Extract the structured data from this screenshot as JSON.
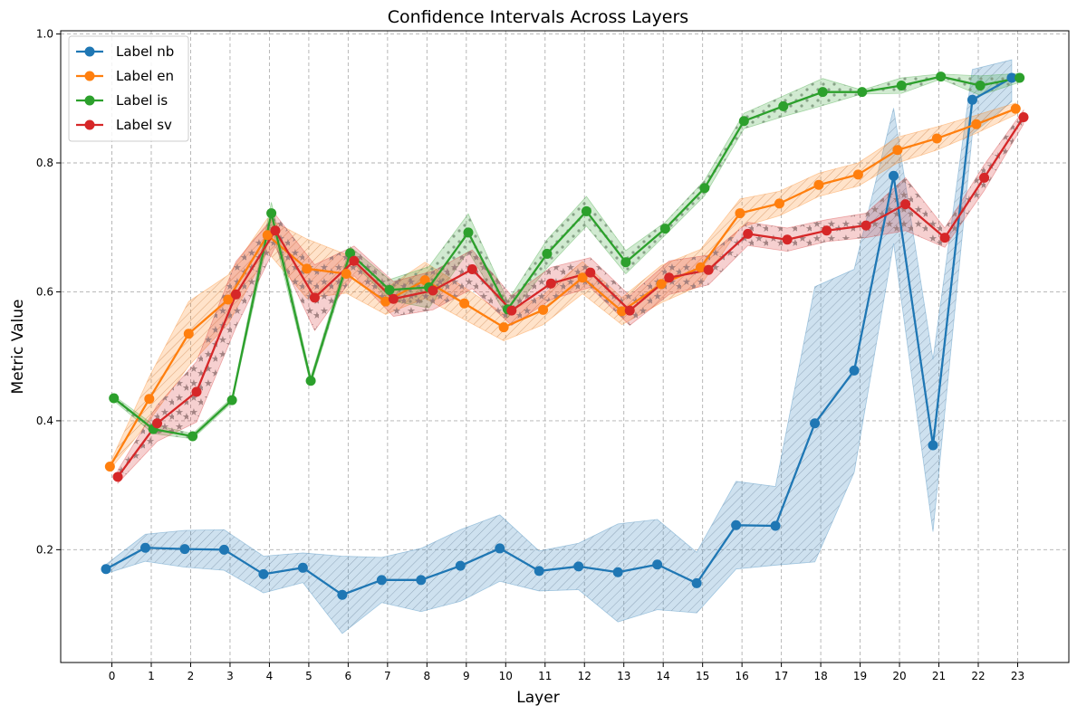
{
  "chart_data": {
    "type": "line",
    "title": "Confidence Intervals Across Layers",
    "xlabel": "Layer",
    "ylabel": "Metric Value",
    "x": [
      0,
      1,
      2,
      3,
      4,
      5,
      6,
      7,
      8,
      9,
      10,
      11,
      12,
      13,
      14,
      15,
      16,
      17,
      18,
      19,
      20,
      21,
      22,
      23
    ],
    "xticks": [
      "0",
      "1",
      "2",
      "3",
      "4",
      "5",
      "6",
      "7",
      "8",
      "9",
      "10",
      "11",
      "12",
      "13",
      "14",
      "15",
      "16",
      "17",
      "18",
      "19",
      "20",
      "21",
      "22",
      "23"
    ],
    "yticks": [
      0.2,
      0.4,
      0.6,
      0.8,
      1.0
    ],
    "ytick_labels": [
      "0.2",
      "0.4",
      "0.6",
      "0.8",
      "1.0"
    ],
    "xlim": [
      -1.3,
      24.3
    ],
    "ylim": [
      0.025,
      1.005
    ],
    "grid": true,
    "legend_position": "top-left",
    "series": [
      {
        "name": "Label nb",
        "color": "#1f77b4",
        "x_offset": -0.15,
        "hatch": "diagonal",
        "values": [
          0.17,
          0.203,
          0.201,
          0.2,
          0.162,
          0.172,
          0.13,
          0.153,
          0.153,
          0.175,
          0.202,
          0.167,
          0.174,
          0.165,
          0.177,
          0.148,
          0.238,
          0.237,
          0.396,
          0.478,
          0.78,
          0.362,
          0.898,
          0.932
        ],
        "lower": [
          0.163,
          0.182,
          0.173,
          0.168,
          0.133,
          0.149,
          0.07,
          0.118,
          0.104,
          0.12,
          0.151,
          0.136,
          0.138,
          0.088,
          0.107,
          0.102,
          0.17,
          0.176,
          0.181,
          0.32,
          0.675,
          0.228,
          0.845,
          0.895
        ],
        "upper": [
          0.177,
          0.224,
          0.23,
          0.231,
          0.19,
          0.195,
          0.19,
          0.188,
          0.202,
          0.231,
          0.254,
          0.198,
          0.21,
          0.24,
          0.247,
          0.196,
          0.306,
          0.298,
          0.608,
          0.635,
          0.885,
          0.495,
          0.945,
          0.96
        ]
      },
      {
        "name": "Label en",
        "color": "#ff7f0e",
        "x_offset": -0.05,
        "hatch": "diagonal",
        "values": [
          0.329,
          0.434,
          0.535,
          0.588,
          0.688,
          0.636,
          0.628,
          0.585,
          0.618,
          0.582,
          0.545,
          0.572,
          0.622,
          0.57,
          0.612,
          0.638,
          0.722,
          0.737,
          0.766,
          0.782,
          0.82,
          0.838,
          0.86,
          0.884
        ],
        "lower": [
          0.324,
          0.4,
          0.485,
          0.55,
          0.662,
          0.59,
          0.598,
          0.565,
          0.59,
          0.557,
          0.524,
          0.549,
          0.597,
          0.549,
          0.583,
          0.61,
          0.7,
          0.718,
          0.748,
          0.764,
          0.8,
          0.82,
          0.846,
          0.875
        ],
        "upper": [
          0.334,
          0.468,
          0.585,
          0.626,
          0.714,
          0.682,
          0.658,
          0.605,
          0.646,
          0.607,
          0.566,
          0.595,
          0.647,
          0.591,
          0.641,
          0.666,
          0.744,
          0.756,
          0.784,
          0.8,
          0.84,
          0.856,
          0.874,
          0.893
        ]
      },
      {
        "name": "Label is",
        "color": "#2ca02c",
        "x_offset": 0.05,
        "hatch": "dots",
        "values": [
          0.435,
          0.387,
          0.376,
          0.432,
          0.722,
          0.462,
          0.66,
          0.603,
          0.607,
          0.692,
          0.573,
          0.659,
          0.725,
          0.646,
          0.698,
          0.761,
          0.865,
          0.888,
          0.91,
          0.91,
          0.92,
          0.934,
          0.92,
          0.932
        ],
        "lower": [
          0.431,
          0.38,
          0.372,
          0.428,
          0.705,
          0.456,
          0.65,
          0.587,
          0.575,
          0.663,
          0.56,
          0.637,
          0.702,
          0.628,
          0.688,
          0.749,
          0.853,
          0.872,
          0.889,
          0.907,
          0.908,
          0.93,
          0.905,
          0.925
        ],
        "upper": [
          0.439,
          0.394,
          0.38,
          0.436,
          0.739,
          0.468,
          0.67,
          0.619,
          0.639,
          0.721,
          0.586,
          0.681,
          0.748,
          0.664,
          0.708,
          0.773,
          0.877,
          0.904,
          0.931,
          0.913,
          0.932,
          0.938,
          0.935,
          0.939
        ]
      },
      {
        "name": "Label sv",
        "color": "#d62728",
        "x_offset": 0.15,
        "hatch": "stars",
        "values": [
          0.313,
          0.396,
          0.445,
          0.596,
          0.695,
          0.591,
          0.648,
          0.589,
          0.602,
          0.635,
          0.571,
          0.613,
          0.63,
          0.571,
          0.622,
          0.634,
          0.69,
          0.681,
          0.695,
          0.703,
          0.736,
          0.684,
          0.777,
          0.871
        ],
        "lower": [
          0.303,
          0.368,
          0.398,
          0.545,
          0.67,
          0.54,
          0.625,
          0.562,
          0.572,
          0.605,
          0.548,
          0.588,
          0.607,
          0.548,
          0.596,
          0.611,
          0.672,
          0.663,
          0.678,
          0.684,
          0.695,
          0.669,
          0.757,
          0.86
        ],
        "upper": [
          0.323,
          0.424,
          0.492,
          0.647,
          0.72,
          0.642,
          0.671,
          0.616,
          0.632,
          0.665,
          0.594,
          0.638,
          0.653,
          0.594,
          0.648,
          0.657,
          0.708,
          0.699,
          0.712,
          0.722,
          0.777,
          0.699,
          0.797,
          0.882
        ]
      }
    ]
  }
}
